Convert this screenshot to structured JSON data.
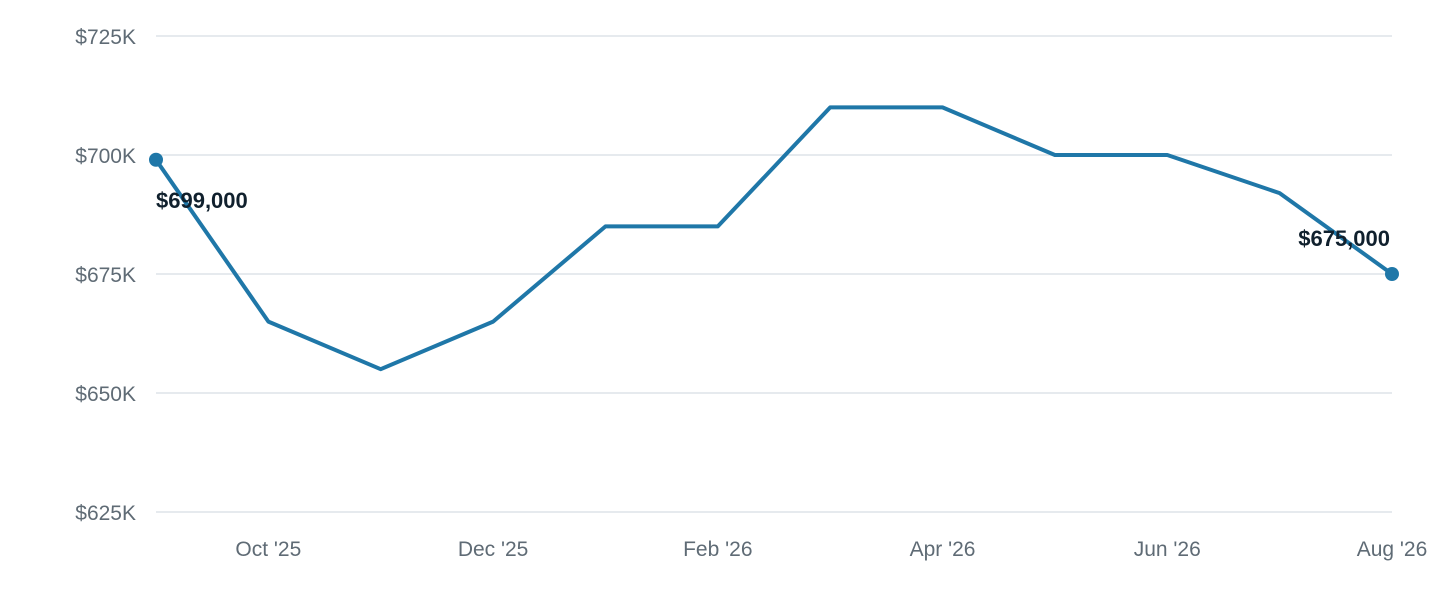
{
  "chart_data": {
    "type": "line",
    "series": [
      {
        "x": [
          "2025-09",
          "2025-10",
          "2025-11",
          "2025-12",
          "2026-01",
          "2026-02",
          "2026-03",
          "2026-04",
          "2026-05",
          "2026-06",
          "2026-07",
          "2026-08"
        ],
        "values": [
          699000,
          665000,
          655000,
          665000,
          685000,
          685000,
          710000,
          710000,
          700000,
          700000,
          692000,
          675000
        ]
      }
    ],
    "ylim": [
      625000,
      725000
    ],
    "yticks": [
      725000,
      700000,
      675000,
      650000,
      625000
    ],
    "ytick_labels": [
      "$725K",
      "$700K",
      "$675K",
      "$650K",
      "$625K"
    ],
    "xtick_labels": [
      "Oct '25",
      "Dec '25",
      "Feb '26",
      "Apr '26",
      "Jun '26",
      "Aug '26"
    ],
    "xtick_positions": [
      "2025-10",
      "2025-12",
      "2026-02",
      "2026-04",
      "2026-06",
      "2026-08"
    ],
    "data_labels": [
      {
        "x": "2025-09",
        "text": "$699,000"
      },
      {
        "x": "2026-08",
        "text": "$675,000"
      }
    ],
    "grid": true,
    "colors": {
      "line": "#1f77a8",
      "grid": "#dde3e8",
      "ticks": "#5f6b75",
      "labels": "#10202d"
    }
  }
}
